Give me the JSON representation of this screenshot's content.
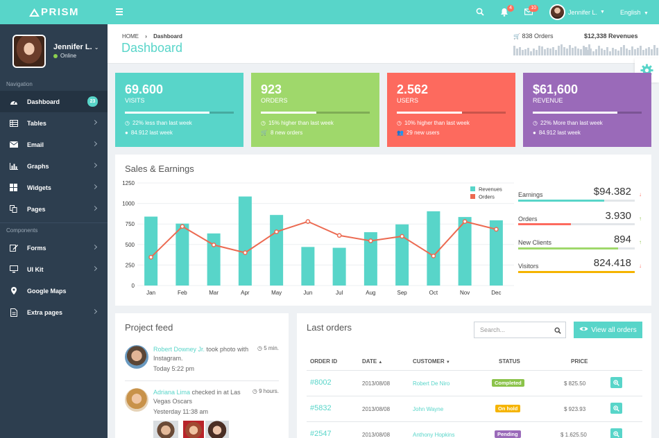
{
  "brand": {
    "name": "PRISM"
  },
  "topbar": {
    "notifications_count": "4",
    "messages_count": "10",
    "user_name": "Jennifer L.",
    "language": "English"
  },
  "sidebar": {
    "user_name": "Jennifer L.",
    "user_status": "Online",
    "nav_label": "Navigation",
    "components_label": "Components",
    "nav_items": [
      {
        "label": "Dashboard",
        "icon": "dashboard-icon",
        "badge": "23"
      },
      {
        "label": "Tables",
        "icon": "table-icon"
      },
      {
        "label": "Email",
        "icon": "envelope-icon"
      },
      {
        "label": "Graphs",
        "icon": "bar-chart-icon"
      },
      {
        "label": "Widgets",
        "icon": "grid-icon"
      },
      {
        "label": "Pages",
        "icon": "pages-icon"
      }
    ],
    "component_items": [
      {
        "label": "Forms",
        "icon": "edit-icon"
      },
      {
        "label": "UI Kit",
        "icon": "monitor-icon"
      },
      {
        "label": "Google Maps",
        "icon": "map-marker-icon"
      },
      {
        "label": "Extra pages",
        "icon": "file-icon"
      }
    ]
  },
  "header": {
    "crumb_home": "HOME",
    "crumb_current": "Dashboard",
    "title": "Dashboard",
    "orders_stat": "838 Orders",
    "revenues_stat": "$12,338 Revenues"
  },
  "cards": [
    {
      "value": "69.600",
      "label": "VISITS",
      "line1": "22% less than last week",
      "line2": "84.912 last week",
      "color": "#58d5c9",
      "progress": 0.78
    },
    {
      "value": "923",
      "label": "ORDERS",
      "line1": "15% higher than last week",
      "line2": "8 new orders",
      "color": "#9fd86b",
      "progress": 0.51
    },
    {
      "value": "2.562",
      "label": "USERS",
      "line1": "10% higher than last week",
      "line2": "29 new users",
      "color": "#fd6a5e",
      "progress": 0.6
    },
    {
      "value": "$61,600",
      "label": "REVENUE",
      "line1": "22% More than last week",
      "line2": "84.912 last week",
      "color": "#9a6ab9",
      "progress": 0.78
    }
  ],
  "sales": {
    "title": "Sales & Earnings",
    "metrics": [
      {
        "label": "Earnings",
        "value": "$94.382",
        "trend": "down",
        "color": "#58d5c9",
        "progress": 0.74
      },
      {
        "label": "Orders",
        "value": "3.930",
        "trend": "up",
        "color": "#fd6a5e",
        "progress": 0.45
      },
      {
        "label": "New Clients",
        "value": "894",
        "trend": "up",
        "color": "#9fd86b",
        "progress": 0.86
      },
      {
        "label": "Visitors",
        "value": "824.418",
        "trend": "down",
        "color": "#f5b400",
        "progress": 1.0
      }
    ]
  },
  "chart_data": {
    "type": "bar",
    "categories": [
      "Jan",
      "Feb",
      "Mar",
      "Apr",
      "May",
      "Jun",
      "Jul",
      "Aug",
      "Sep",
      "Oct",
      "Nov",
      "Dec"
    ],
    "yticks": [
      0,
      250,
      500,
      750,
      1000,
      1250
    ],
    "ylim": [
      0,
      1250
    ],
    "grid": true,
    "legend": "top-right",
    "series": [
      {
        "name": "Revenues",
        "kind": "bar",
        "color": "#58d5c9",
        "values": [
          840,
          755,
          635,
          1085,
          860,
          470,
          460,
          650,
          745,
          905,
          835,
          795
        ]
      },
      {
        "name": "Orders",
        "kind": "line",
        "color": "#ec6a51",
        "values": [
          345,
          720,
          495,
          400,
          655,
          780,
          610,
          545,
          600,
          360,
          780,
          685
        ]
      }
    ]
  },
  "feed": {
    "title": "Project feed",
    "items": [
      {
        "who": "Robert Downey Jr.",
        "text": " took photo with Instagram.",
        "time": "5 min.",
        "when": "Today 5:22 pm"
      },
      {
        "who": "Adriana Lima",
        "text": " checked in at Las Vegas Oscars",
        "time": "9 hours.",
        "when": "Yesterday 11:38 am"
      }
    ]
  },
  "orders": {
    "title": "Last orders",
    "search_placeholder": "Search...",
    "view_all": "View all orders",
    "headers": {
      "id": "ORDER ID",
      "date": "DATE",
      "customer": "CUSTOMER",
      "status": "STATUS",
      "price": "PRICE"
    },
    "rows": [
      {
        "id": "#8002",
        "date": "2013/08/08",
        "customer": "Robert De Niro",
        "status": "Completed",
        "status_color": "#8bc34a",
        "price": "$ 825.50"
      },
      {
        "id": "#5832",
        "date": "2013/08/08",
        "customer": "John Wayne",
        "status": "On hold",
        "status_color": "#f5b400",
        "price": "$ 923.93"
      },
      {
        "id": "#2547",
        "date": "2013/08/08",
        "customer": "Anthony Hopkins",
        "status": "Pending",
        "status_color": "#9a6ab9",
        "price": "$ 1.625.50"
      }
    ]
  }
}
